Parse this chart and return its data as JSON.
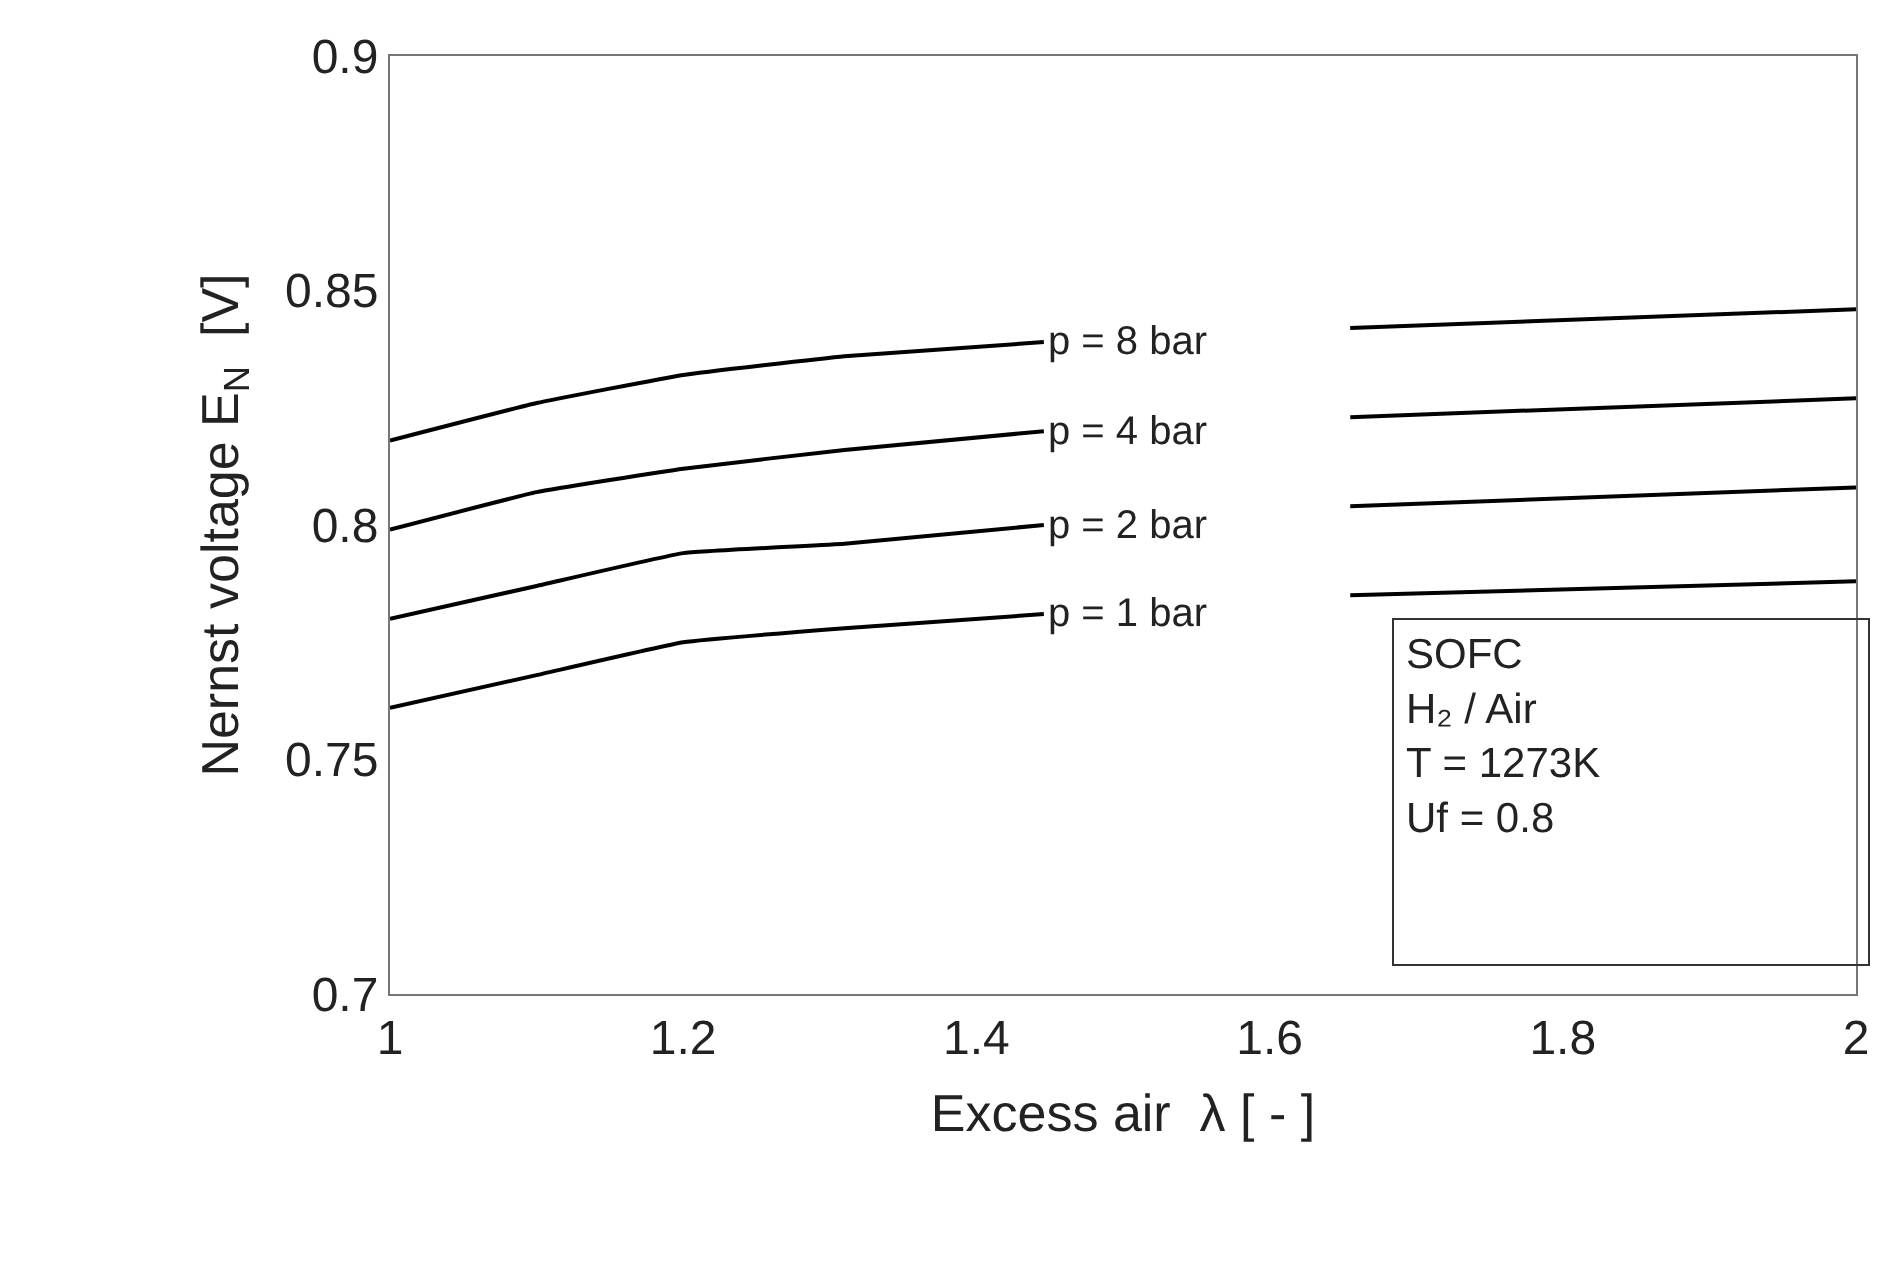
{
  "chart_data": {
    "type": "line",
    "xlabel": "Excess air  λ [ - ]",
    "ylabel": "Nernst voltage E$_{N}$  [V]",
    "xlim": [
      1,
      2
    ],
    "xticks": [
      1,
      1.2,
      1.4,
      1.6,
      1.8,
      2
    ],
    "ylim": [
      0.7,
      0.9
    ],
    "yticks": [
      0.7,
      0.75,
      0.8,
      0.85,
      0.9
    ],
    "x": [
      1,
      1.1,
      1.2,
      1.31,
      1.446,
      1.55,
      1.655,
      2
    ],
    "series": [
      {
        "name": "p = 8 bar",
        "color": "#000000",
        "values": [
          0.818,
          0.826,
          0.832,
          0.836,
          0.839,
          null,
          0.842,
          0.846
        ]
      },
      {
        "name": "p = 4 bar",
        "color": "#000000",
        "values": [
          0.799,
          0.807,
          0.812,
          0.816,
          0.82,
          null,
          0.823,
          0.827
        ]
      },
      {
        "name": "p = 2 bar",
        "color": "#000000",
        "values": [
          0.78,
          0.787,
          0.794,
          0.796,
          0.8,
          null,
          0.804,
          0.808
        ]
      },
      {
        "name": "p = 1 bar",
        "color": "#000000",
        "values": [
          0.761,
          0.768,
          0.775,
          0.778,
          0.781,
          null,
          0.785,
          0.788
        ]
      }
    ],
    "annotations": [
      "SOFC\nH₂ / Air\nT = 1273K\nUf = 0.8"
    ],
    "legend": false
  }
}
